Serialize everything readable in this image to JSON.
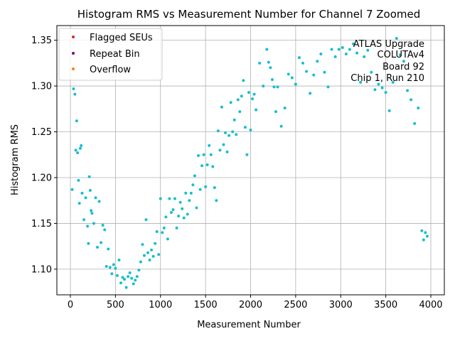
{
  "chart_data": {
    "type": "scatter",
    "title": "Histogram RMS vs Measurement Number for Channel 7 Zoomed",
    "xlabel": "Measurement Number",
    "ylabel": "Histogram RMS",
    "xlim": [
      -150,
      4150
    ],
    "ylim": [
      1.072,
      1.366
    ],
    "xticks": [
      0,
      500,
      1000,
      1500,
      2000,
      2500,
      3000,
      3500,
      4000
    ],
    "yticks": [
      1.1,
      1.15,
      1.2,
      1.25,
      1.3,
      1.35
    ],
    "xtick_labels": [
      "0",
      "500",
      "1000",
      "1500",
      "2000",
      "2500",
      "3000",
      "3500",
      "4000"
    ],
    "ytick_labels": [
      "1.10",
      "1.15",
      "1.20",
      "1.25",
      "1.30",
      "1.35"
    ],
    "grid": true,
    "legend_position": "top-left",
    "legend": [
      {
        "label": "Flagged SEUs",
        "color": "#d62728"
      },
      {
        "label": "Repeat Bin",
        "color": "#800080"
      },
      {
        "label": "Overflow",
        "color": "#ff7f0e"
      }
    ],
    "annotation": [
      "ATLAS Upgrade",
      "COLUTAv4",
      "Board 92",
      "Chip 1, Run 210"
    ],
    "point_color": "#17becf",
    "series": [
      {
        "x": [
          20,
          35,
          50,
          60,
          70,
          80,
          90,
          100,
          110,
          120,
          130,
          150,
          170,
          190,
          200,
          210,
          220,
          230,
          240,
          260,
          280,
          300,
          320,
          340,
          360,
          380,
          400,
          420,
          440,
          460,
          480,
          500,
          520,
          540,
          560,
          580,
          600,
          620,
          640,
          660,
          680,
          700,
          720,
          740,
          760,
          780,
          800,
          820,
          840,
          860,
          880,
          900,
          920,
          940,
          960,
          980,
          1000,
          1020,
          1040,
          1060,
          1080,
          1100,
          1120,
          1140,
          1160,
          1180,
          1200,
          1220,
          1240,
          1260,
          1280,
          1300,
          1320,
          1340,
          1360,
          1380,
          1400,
          1420,
          1440,
          1460,
          1480,
          1500,
          1520,
          1540,
          1560,
          1580,
          1600,
          1620,
          1640,
          1660,
          1680,
          1700,
          1720,
          1740,
          1760,
          1780,
          1800,
          1820,
          1840,
          1860,
          1880,
          1900,
          1920,
          1940,
          1960,
          1980,
          2000,
          2020,
          2040,
          2060,
          2100,
          2140,
          2180,
          2200,
          2220,
          2240,
          2260,
          2280,
          2300,
          2340,
          2380,
          2420,
          2460,
          2500,
          2540,
          2580,
          2620,
          2660,
          2700,
          2740,
          2780,
          2820,
          2860,
          2900,
          2940,
          2980,
          3020,
          3060,
          3100,
          3140,
          3180,
          3220,
          3260,
          3300,
          3340,
          3380,
          3420,
          3460,
          3500,
          3540,
          3580,
          3620,
          3660,
          3700,
          3740,
          3780,
          3820,
          3860,
          3900,
          3920,
          3940,
          3960
        ],
        "y": [
          1.187,
          1.297,
          1.291,
          1.23,
          1.262,
          1.227,
          1.197,
          1.172,
          1.232,
          1.235,
          1.183,
          1.154,
          1.178,
          1.147,
          1.128,
          1.201,
          1.186,
          1.164,
          1.161,
          1.15,
          1.178,
          1.124,
          1.174,
          1.129,
          1.148,
          1.143,
          1.103,
          1.122,
          1.102,
          1.095,
          1.105,
          1.101,
          1.093,
          1.11,
          1.085,
          1.091,
          1.089,
          1.08,
          1.092,
          1.096,
          1.09,
          1.084,
          1.088,
          1.092,
          1.099,
          1.108,
          1.127,
          1.115,
          1.154,
          1.118,
          1.11,
          1.121,
          1.114,
          1.128,
          1.141,
          1.116,
          1.177,
          1.14,
          1.145,
          1.157,
          1.133,
          1.177,
          1.162,
          1.165,
          1.177,
          1.145,
          1.158,
          1.173,
          1.166,
          1.156,
          1.183,
          1.16,
          1.175,
          1.183,
          1.192,
          1.202,
          1.167,
          1.224,
          1.187,
          1.213,
          1.225,
          1.19,
          1.214,
          1.235,
          1.225,
          1.212,
          1.189,
          1.175,
          1.251,
          1.23,
          1.277,
          1.236,
          1.249,
          1.228,
          1.246,
          1.282,
          1.25,
          1.263,
          1.247,
          1.285,
          1.272,
          1.289,
          1.306,
          1.255,
          1.225,
          1.293,
          1.252,
          1.286,
          1.291,
          1.274,
          1.325,
          1.3,
          1.34,
          1.326,
          1.32,
          1.307,
          1.299,
          1.272,
          1.299,
          1.256,
          1.276,
          1.313,
          1.309,
          1.302,
          1.331,
          1.325,
          1.316,
          1.292,
          1.312,
          1.327,
          1.335,
          1.315,
          1.299,
          1.34,
          1.332,
          1.34,
          1.342,
          1.335,
          1.34,
          1.346,
          1.336,
          1.304,
          1.332,
          1.339,
          1.315,
          1.296,
          1.302,
          1.298,
          1.293,
          1.273,
          1.304,
          1.352,
          1.334,
          1.327,
          1.295,
          1.285,
          1.259,
          1.276,
          1.142,
          1.132,
          1.14,
          1.136
        ]
      }
    ]
  }
}
